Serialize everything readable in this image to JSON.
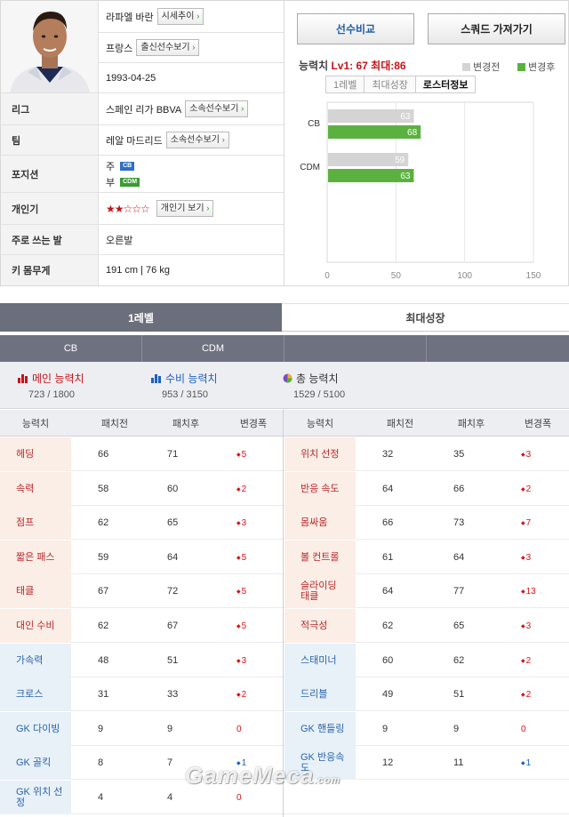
{
  "profile": {
    "name": "라파엘 바란",
    "price_trend_btn": "시세추이",
    "nation": "프랑스",
    "nation_btn": "출신선수보기",
    "birth": "1993-04-25",
    "league_label": "리그",
    "league": "스페인 리가 BBVA",
    "league_btn": "소속선수보기",
    "team_label": "팀",
    "team": "레알 마드리드",
    "team_btn": "소속선수보기",
    "position_label": "포지션",
    "pos_main_prefix": "주",
    "pos_main": "CB",
    "pos_sub_prefix": "부",
    "pos_sub": "CDM",
    "popularity_label": "개인기",
    "popularity_stars": "★★☆☆☆",
    "popularity_btn": "개인기 보기",
    "foot_label": "주로 쓰는 발",
    "foot": "오른발",
    "body_label": "키 몸무게",
    "body": "191 cm | 76 kg"
  },
  "panel": {
    "compare_btn": "선수비교",
    "squad_btn": "스쿼드 가져가기",
    "ability_key": "능력치",
    "ability_val": "Lv1: 67 최대:86",
    "legend_before": "변경전",
    "legend_after": "변경후",
    "tabs": [
      "1레벨",
      "최대성장",
      "로스터정보"
    ],
    "colors": {
      "before": "#d4d4d4",
      "after": "#5bb13f"
    }
  },
  "chart_data": {
    "type": "bar",
    "orientation": "horizontal",
    "categories": [
      "CB",
      "CDM"
    ],
    "series": [
      {
        "name": "변경전",
        "values": [
          63,
          59
        ]
      },
      {
        "name": "변경후",
        "values": [
          68,
          63
        ]
      }
    ],
    "xlim": [
      0,
      150
    ],
    "xticks": [
      "0",
      "50",
      "100",
      "150"
    ],
    "grid": true
  },
  "sections": {
    "lv1": "1레벨",
    "max": "최대성장"
  },
  "positions": [
    "CB",
    "CDM",
    "",
    ""
  ],
  "summary": {
    "main": {
      "label": "메인 능력치",
      "value": "723 / 1800"
    },
    "def": {
      "label": "수비 능력치",
      "value": "953 / 3150"
    },
    "total": {
      "label": "총 능력치",
      "value": "1529 / 5100"
    }
  },
  "table": {
    "headers": [
      "능력치",
      "패치전",
      "패치후",
      "변경폭",
      "능력치",
      "패치전",
      "패치후",
      "변경폭"
    ],
    "rows": [
      {
        "l": [
          "헤딩",
          "66",
          "71",
          "5",
          "up"
        ],
        "r": [
          "위치 선정",
          "32",
          "35",
          "3",
          "up"
        ]
      },
      {
        "l": [
          "속력",
          "58",
          "60",
          "2",
          "up"
        ],
        "r": [
          "반응 속도",
          "64",
          "66",
          "2",
          "up"
        ]
      },
      {
        "l": [
          "점프",
          "62",
          "65",
          "3",
          "up"
        ],
        "r": [
          "몸싸움",
          "66",
          "73",
          "7",
          "up"
        ]
      },
      {
        "l": [
          "짧은 패스",
          "59",
          "64",
          "5",
          "up"
        ],
        "r": [
          "볼 컨트롤",
          "61",
          "64",
          "3",
          "up"
        ]
      },
      {
        "l": [
          "태클",
          "67",
          "72",
          "5",
          "up"
        ],
        "r": [
          "슬라이딩\n태클",
          "64",
          "77",
          "13",
          "up"
        ]
      },
      {
        "l": [
          "대인 수비",
          "62",
          "67",
          "5",
          "up"
        ],
        "r": [
          "적극성",
          "62",
          "65",
          "3",
          "up"
        ]
      },
      {
        "l": [
          "가속력",
          "48",
          "51",
          "3",
          "up"
        ],
        "r": [
          "스태미너",
          "60",
          "62",
          "2",
          "up"
        ]
      },
      {
        "l": [
          "크로스",
          "31",
          "33",
          "2",
          "up"
        ],
        "r": [
          "드리블",
          "49",
          "51",
          "2",
          "up"
        ]
      },
      {
        "l": [
          "GK 다이빙",
          "9",
          "9",
          "0",
          "zero"
        ],
        "r": [
          "GK 핸들링",
          "9",
          "9",
          "0",
          "zero"
        ]
      },
      {
        "l": [
          "GK 골킥",
          "8",
          "7",
          "1",
          "dn"
        ],
        "r": [
          "GK 반응속\n도",
          "12",
          "11",
          "1",
          "dn"
        ]
      },
      {
        "l": [
          "GK 위치 선\n정",
          "4",
          "4",
          "0",
          "zero"
        ],
        "r": [
          "",
          "",
          "",
          "",
          ""
        ]
      }
    ]
  },
  "watermark": {
    "brand": "GameMeca",
    "suffix": ".com"
  }
}
